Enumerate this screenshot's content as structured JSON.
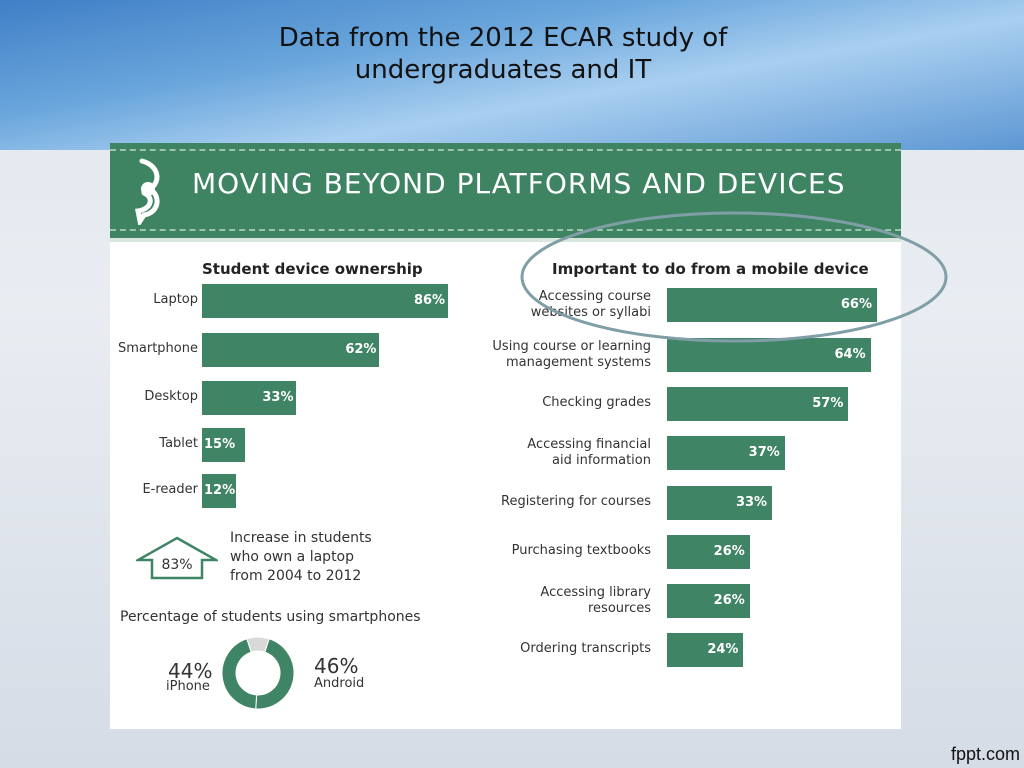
{
  "slide": {
    "title_line1": "Data from the 2012 ECAR study of",
    "title_line2": "undergraduates and IT",
    "footer": "fppt.com"
  },
  "infographic": {
    "banner_title": "MOVING BEYOND PLATFORMS AND DEVICES",
    "colors": {
      "bar": "#3f8465",
      "banner": "#3e8463",
      "donut_other": "#d9d9d9",
      "ellipse": "#7f9ea6"
    },
    "increase": {
      "value": "83%",
      "text_line1": "Increase in students",
      "text_line2": "who own a laptop",
      "text_line3": "from 2004 to 2012",
      "icon": "up-arrow-house-icon"
    },
    "logo_icon": "educause-logo-icon"
  },
  "chart_data": [
    {
      "type": "bar",
      "title": "Student device ownership",
      "categories": [
        "Laptop",
        "Smartphone",
        "Desktop",
        "Tablet",
        "E-reader"
      ],
      "values": [
        86,
        62,
        33,
        15,
        12
      ],
      "value_labels": [
        "86%",
        "62%",
        "33%",
        "15%",
        "12%"
      ]
    },
    {
      "type": "bar",
      "title": "Important to do from a mobile device",
      "categories": [
        [
          "Accessing course",
          "websites or syllabi"
        ],
        [
          "Using course or learning",
          "management systems"
        ],
        [
          "Checking grades"
        ],
        [
          "Accessing financial",
          "aid information"
        ],
        [
          "Registering for courses"
        ],
        [
          "Purchasing textbooks"
        ],
        [
          "Accessing library",
          "resources"
        ],
        [
          "Ordering transcripts"
        ]
      ],
      "values": [
        66,
        64,
        57,
        37,
        33,
        26,
        26,
        24
      ],
      "value_labels": [
        "66%",
        "64%",
        "57%",
        "37%",
        "33%",
        "26%",
        "26%",
        "24%"
      ]
    },
    {
      "type": "pie",
      "title": "Percentage of students using smartphones",
      "slices": [
        {
          "name": "iPhone",
          "value": 44,
          "label": "44%"
        },
        {
          "name": "Android",
          "value": 46,
          "label": "46%"
        },
        {
          "name": "",
          "value": 10,
          "label": ""
        }
      ]
    }
  ]
}
